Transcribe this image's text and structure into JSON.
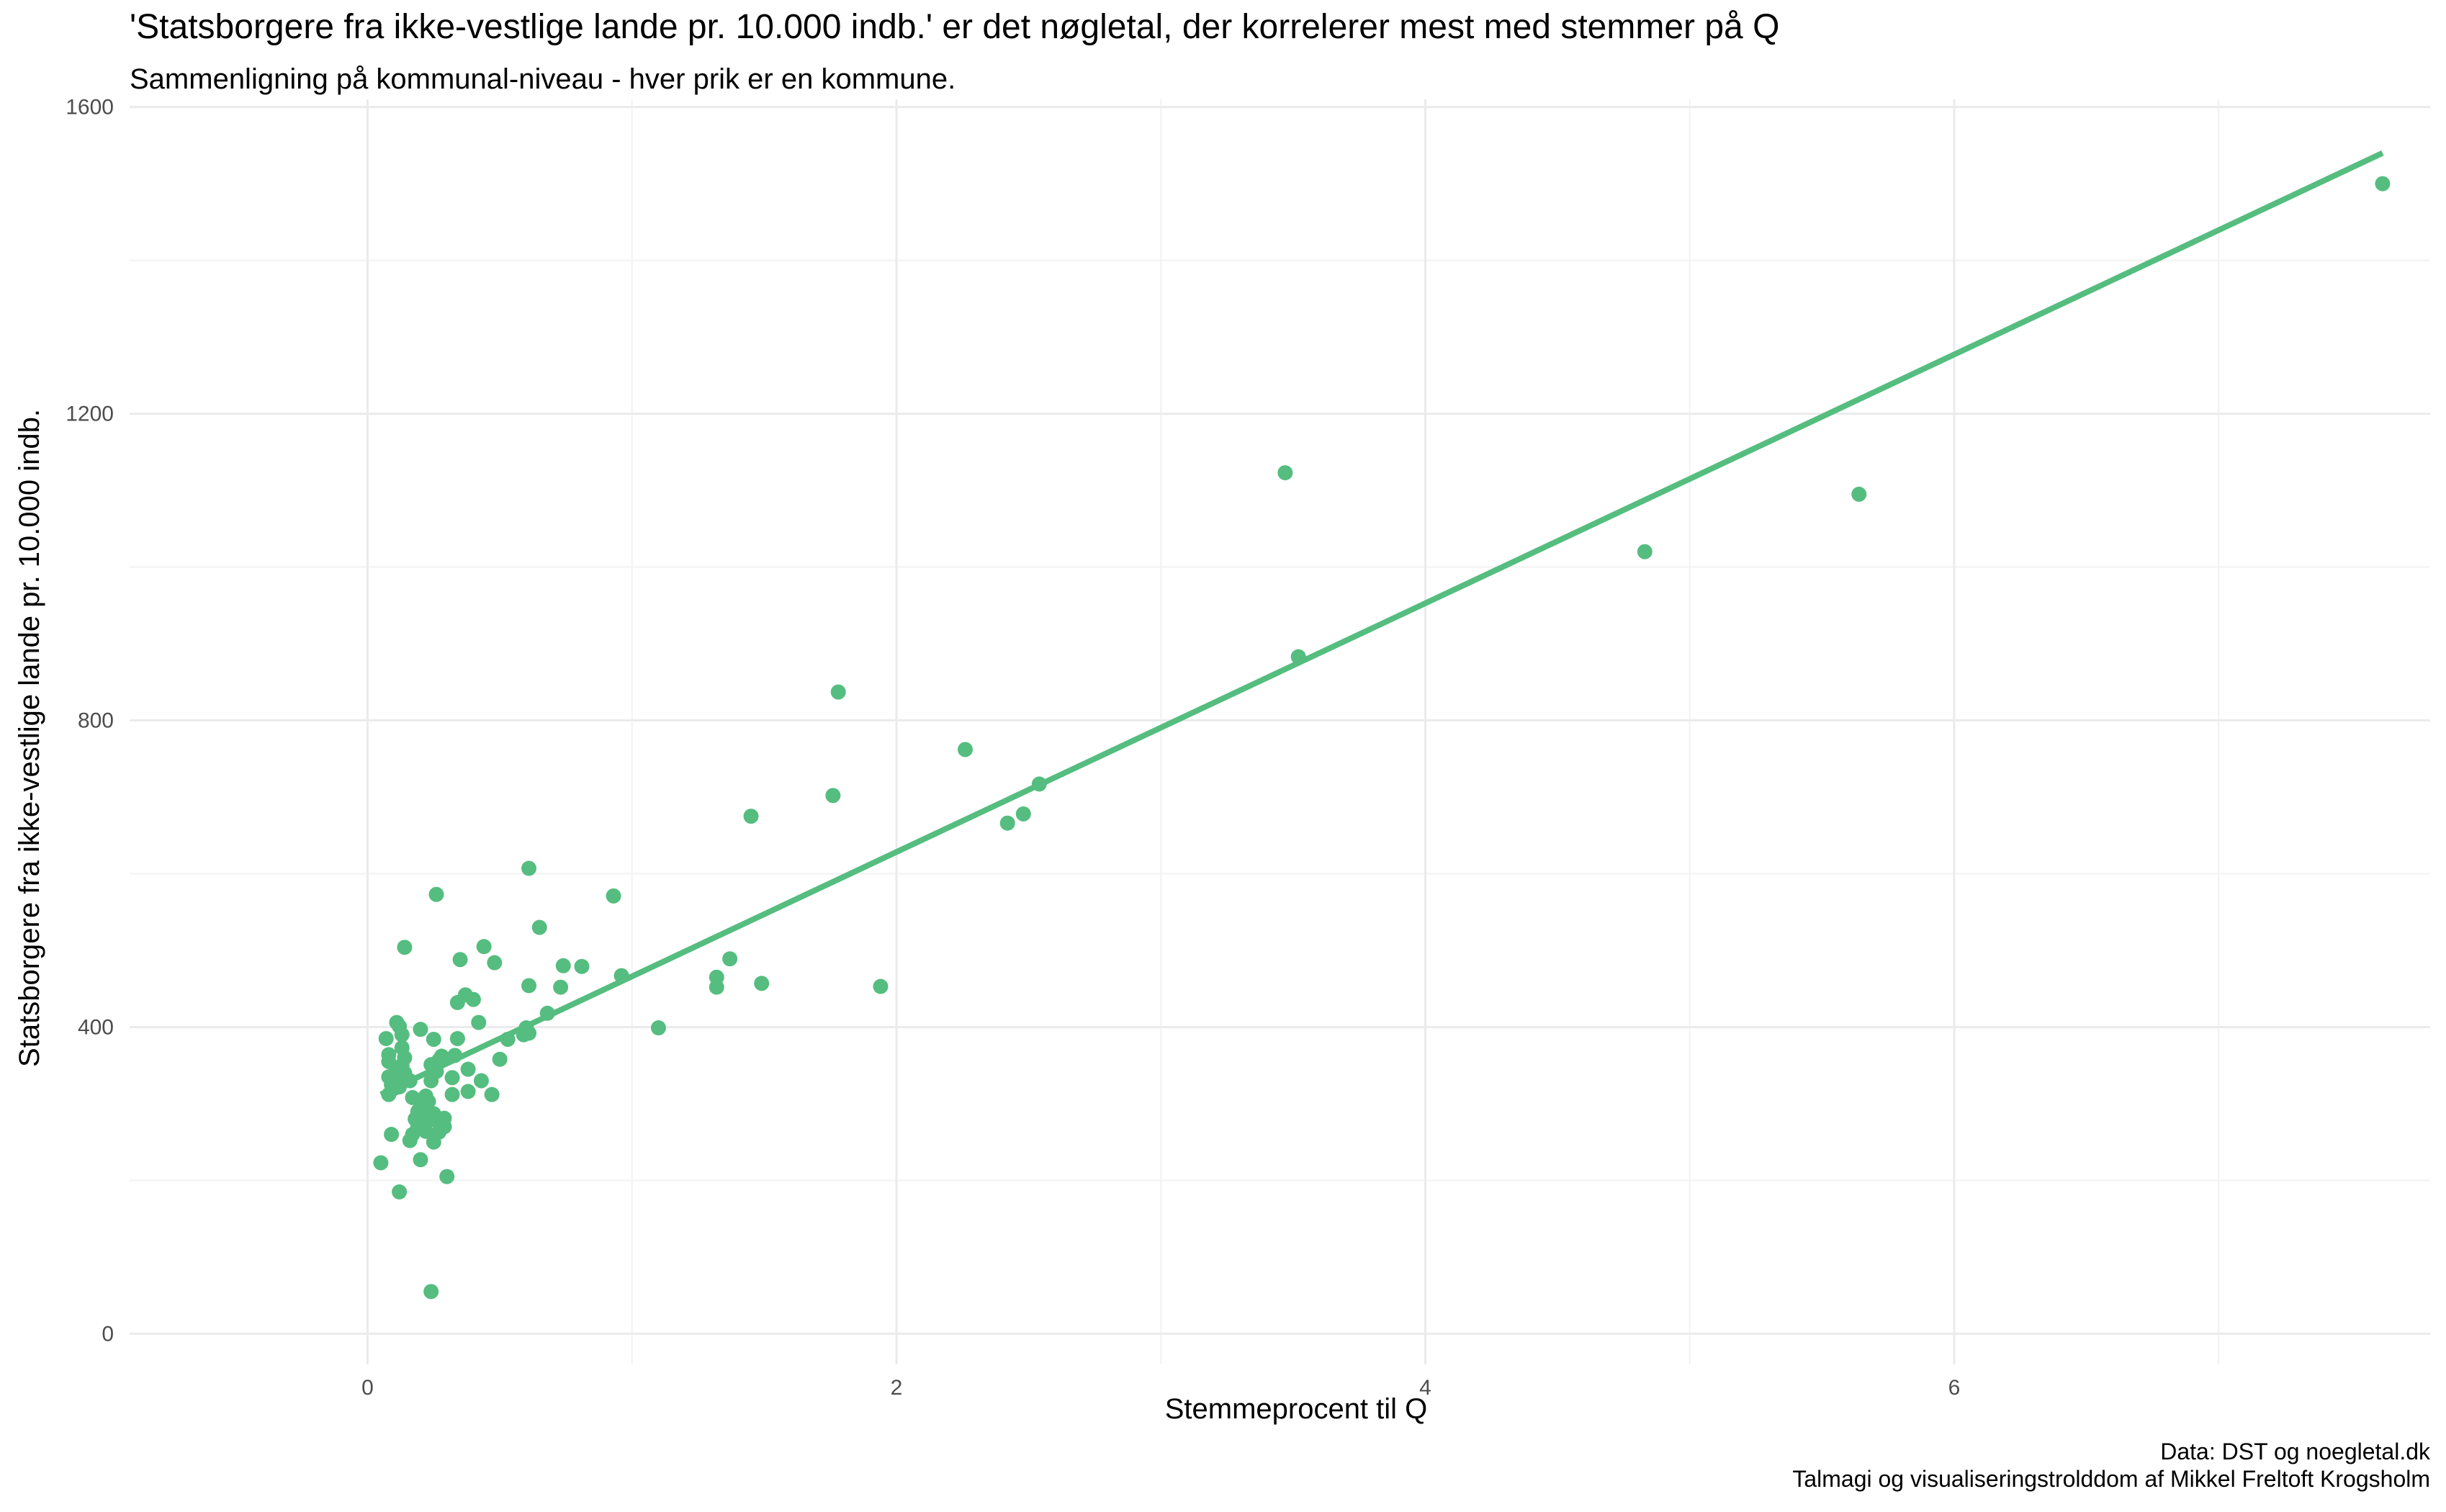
{
  "chart_data": {
    "type": "scatter",
    "title": "'Statsborgere fra ikke-vestlige lande pr. 10.000 indb.' er det nøgletal, der korrelerer mest med stemmer på Q",
    "subtitle": "Sammenligning på kommunal-niveau - hver prik er en kommune.",
    "xlabel": "Stemmeprocent til Q",
    "ylabel": "Statsborgere fra ikke-vestlige lande pr. 10.000 indb.",
    "xlim": [
      -0.9,
      7.8
    ],
    "ylim": [
      -40,
      1610
    ],
    "x_ticks": [
      0,
      2,
      4,
      6
    ],
    "y_ticks": [
      0,
      400,
      800,
      1200,
      1600
    ],
    "x_tick_labels": [
      "0",
      "2",
      "4",
      "6"
    ],
    "y_tick_labels": [
      "0",
      "400",
      "800",
      "1200",
      "1600"
    ],
    "grid": true,
    "point_color": "#55bd7f",
    "line_color": "#55bd7f",
    "trend_line": {
      "x": [
        0.05,
        7.62
      ],
      "y": [
        312,
        1540
      ]
    },
    "points": [
      [
        7.62,
        1500
      ],
      [
        5.64,
        1095
      ],
      [
        4.83,
        1020
      ],
      [
        3.47,
        1123
      ],
      [
        3.52,
        883
      ],
      [
        2.54,
        717
      ],
      [
        2.48,
        678
      ],
      [
        2.42,
        666
      ],
      [
        2.26,
        762
      ],
      [
        1.78,
        837
      ],
      [
        1.76,
        702
      ],
      [
        1.45,
        675
      ],
      [
        1.94,
        453
      ],
      [
        1.49,
        457
      ],
      [
        1.37,
        489
      ],
      [
        1.32,
        465
      ],
      [
        1.32,
        452
      ],
      [
        1.1,
        399
      ],
      [
        0.96,
        467
      ],
      [
        0.93,
        571
      ],
      [
        0.81,
        479
      ],
      [
        0.74,
        480
      ],
      [
        0.73,
        452
      ],
      [
        0.65,
        530
      ],
      [
        0.61,
        607
      ],
      [
        0.61,
        454
      ],
      [
        0.68,
        418
      ],
      [
        0.61,
        392
      ],
      [
        0.6,
        399
      ],
      [
        0.59,
        390
      ],
      [
        0.53,
        384
      ],
      [
        0.5,
        358
      ],
      [
        0.48,
        484
      ],
      [
        0.47,
        312
      ],
      [
        0.44,
        505
      ],
      [
        0.43,
        330
      ],
      [
        0.42,
        406
      ],
      [
        0.4,
        436
      ],
      [
        0.38,
        316
      ],
      [
        0.38,
        345
      ],
      [
        0.37,
        442
      ],
      [
        0.35,
        488
      ],
      [
        0.34,
        385
      ],
      [
        0.34,
        432
      ],
      [
        0.33,
        363
      ],
      [
        0.32,
        334
      ],
      [
        0.32,
        312
      ],
      [
        0.3,
        205
      ],
      [
        0.29,
        270
      ],
      [
        0.29,
        281
      ],
      [
        0.28,
        277
      ],
      [
        0.28,
        362
      ],
      [
        0.27,
        263
      ],
      [
        0.27,
        357
      ],
      [
        0.26,
        573
      ],
      [
        0.26,
        342
      ],
      [
        0.25,
        250
      ],
      [
        0.25,
        287
      ],
      [
        0.25,
        384
      ],
      [
        0.24,
        55
      ],
      [
        0.24,
        351
      ],
      [
        0.24,
        279
      ],
      [
        0.24,
        330
      ],
      [
        0.23,
        303
      ],
      [
        0.22,
        264
      ],
      [
        0.22,
        288
      ],
      [
        0.22,
        310
      ],
      [
        0.21,
        297
      ],
      [
        0.21,
        283
      ],
      [
        0.2,
        270
      ],
      [
        0.2,
        397
      ],
      [
        0.2,
        227
      ],
      [
        0.19,
        290
      ],
      [
        0.19,
        270
      ],
      [
        0.18,
        280
      ],
      [
        0.17,
        260
      ],
      [
        0.17,
        308
      ],
      [
        0.16,
        252
      ],
      [
        0.16,
        330
      ],
      [
        0.14,
        504
      ],
      [
        0.14,
        340
      ],
      [
        0.14,
        360
      ],
      [
        0.13,
        373
      ],
      [
        0.13,
        350
      ],
      [
        0.13,
        390
      ],
      [
        0.12,
        401
      ],
      [
        0.12,
        185
      ],
      [
        0.12,
        322
      ],
      [
        0.11,
        406
      ],
      [
        0.11,
        342
      ],
      [
        0.1,
        335
      ],
      [
        0.1,
        320
      ],
      [
        0.09,
        325
      ],
      [
        0.09,
        260
      ],
      [
        0.08,
        364
      ],
      [
        0.08,
        355
      ],
      [
        0.08,
        312
      ],
      [
        0.08,
        335
      ],
      [
        0.07,
        385
      ],
      [
        0.05,
        223
      ]
    ]
  },
  "caption": {
    "line1": "Data: DST og noegletal.dk",
    "line2": "Talmagi og visualiseringstrolddom af Mikkel Freltoft Krogsholm"
  }
}
